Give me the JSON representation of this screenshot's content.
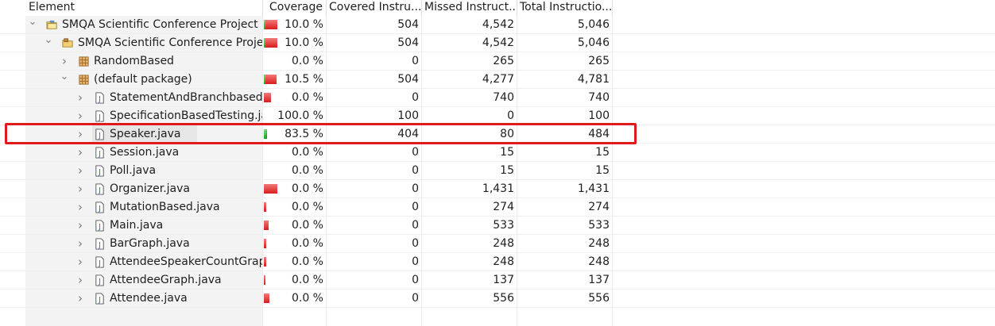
{
  "columns": {
    "element": "Element",
    "coverage": "Coverage",
    "covered": "Covered Instru...",
    "missed": "Missed Instruct...",
    "total": "Total Instructio..."
  },
  "colors": {
    "red_bar": "#d81b1b",
    "green_bar": "#1ca81c",
    "highlight": "#e01a1a"
  },
  "rows": [
    {
      "label": "SMQA Scientific Conference Project",
      "icon": "project-icon",
      "chevron": "expanded",
      "coverage": "10.0 %",
      "cov_fraction": 0.1,
      "bar_scale": 1.0,
      "covered": "504",
      "missed": "4,542",
      "total": "5,046"
    },
    {
      "label": "SMQA Scientific Conference Project",
      "icon": "source-folder-icon",
      "chevron": "expanded",
      "coverage": "10.0 %",
      "cov_fraction": 0.1,
      "bar_scale": 1.0,
      "covered": "504",
      "missed": "4,542",
      "total": "5,046"
    },
    {
      "label": "RandomBased",
      "icon": "package-icon",
      "chevron": "collapsed",
      "coverage": "0.0 %",
      "cov_fraction": 0.0,
      "bar_scale": 0.0,
      "covered": "0",
      "missed": "265",
      "total": "265"
    },
    {
      "label": "(default package)",
      "icon": "package-icon",
      "chevron": "expanded",
      "coverage": "10.5 %",
      "cov_fraction": 0.105,
      "bar_scale": 0.95,
      "covered": "504",
      "missed": "4,277",
      "total": "4,781"
    },
    {
      "label": "StatementAndBranchbasedM",
      "icon": "java-file-icon",
      "chevron": "collapsed",
      "coverage": "0.0 %",
      "cov_fraction": 0.0,
      "bar_scale": 0.55,
      "covered": "0",
      "missed": "740",
      "total": "740"
    },
    {
      "label": "SpecificationBasedTesting.jav",
      "icon": "java-file-icon",
      "chevron": "collapsed",
      "coverage": "100.0 %",
      "cov_fraction": 1.0,
      "bar_scale": 0.0,
      "covered": "100",
      "missed": "0",
      "total": "100"
    },
    {
      "label": "Speaker.java",
      "icon": "java-file-icon",
      "chevron": "collapsed",
      "coverage": "83.5 %",
      "cov_fraction": 0.835,
      "bar_scale": 0.25,
      "covered": "404",
      "missed": "80",
      "total": "484",
      "selected": true
    },
    {
      "label": "Session.java",
      "icon": "java-file-icon",
      "chevron": "collapsed",
      "coverage": "0.0 %",
      "cov_fraction": 0.0,
      "bar_scale": 0.0,
      "covered": "0",
      "missed": "15",
      "total": "15"
    },
    {
      "label": "Poll.java",
      "icon": "java-file-icon",
      "chevron": "collapsed",
      "coverage": "0.0 %",
      "cov_fraction": 0.0,
      "bar_scale": 0.0,
      "covered": "0",
      "missed": "15",
      "total": "15"
    },
    {
      "label": "Organizer.java",
      "icon": "java-file-icon",
      "chevron": "collapsed",
      "coverage": "0.0 %",
      "cov_fraction": 0.0,
      "bar_scale": 1.0,
      "covered": "0",
      "missed": "1,431",
      "total": "1,431"
    },
    {
      "label": "MutationBased.java",
      "icon": "java-file-icon",
      "chevron": "collapsed",
      "coverage": "0.0 %",
      "cov_fraction": 0.0,
      "bar_scale": 0.19,
      "covered": "0",
      "missed": "274",
      "total": "274"
    },
    {
      "label": "Main.java",
      "icon": "java-file-icon",
      "chevron": "collapsed",
      "coverage": "0.0 %",
      "cov_fraction": 0.0,
      "bar_scale": 0.37,
      "covered": "0",
      "missed": "533",
      "total": "533"
    },
    {
      "label": "BarGraph.java",
      "icon": "java-file-icon",
      "chevron": "collapsed",
      "coverage": "0.0 %",
      "cov_fraction": 0.0,
      "bar_scale": 0.17,
      "covered": "0",
      "missed": "248",
      "total": "248"
    },
    {
      "label": "AttendeeSpeakerCountGraph",
      "icon": "java-file-icon",
      "chevron": "collapsed",
      "coverage": "0.0 %",
      "cov_fraction": 0.0,
      "bar_scale": 0.17,
      "covered": "0",
      "missed": "248",
      "total": "248"
    },
    {
      "label": "AttendeeGraph.java",
      "icon": "java-file-icon",
      "chevron": "collapsed",
      "coverage": "0.0 %",
      "cov_fraction": 0.0,
      "bar_scale": 0.1,
      "covered": "0",
      "missed": "137",
      "total": "137"
    },
    {
      "label": "Attendee.java",
      "icon": "java-file-icon",
      "chevron": "collapsed",
      "coverage": "0.0 %",
      "cov_fraction": 0.0,
      "bar_scale": 0.39,
      "covered": "0",
      "missed": "556",
      "total": "556"
    }
  ]
}
